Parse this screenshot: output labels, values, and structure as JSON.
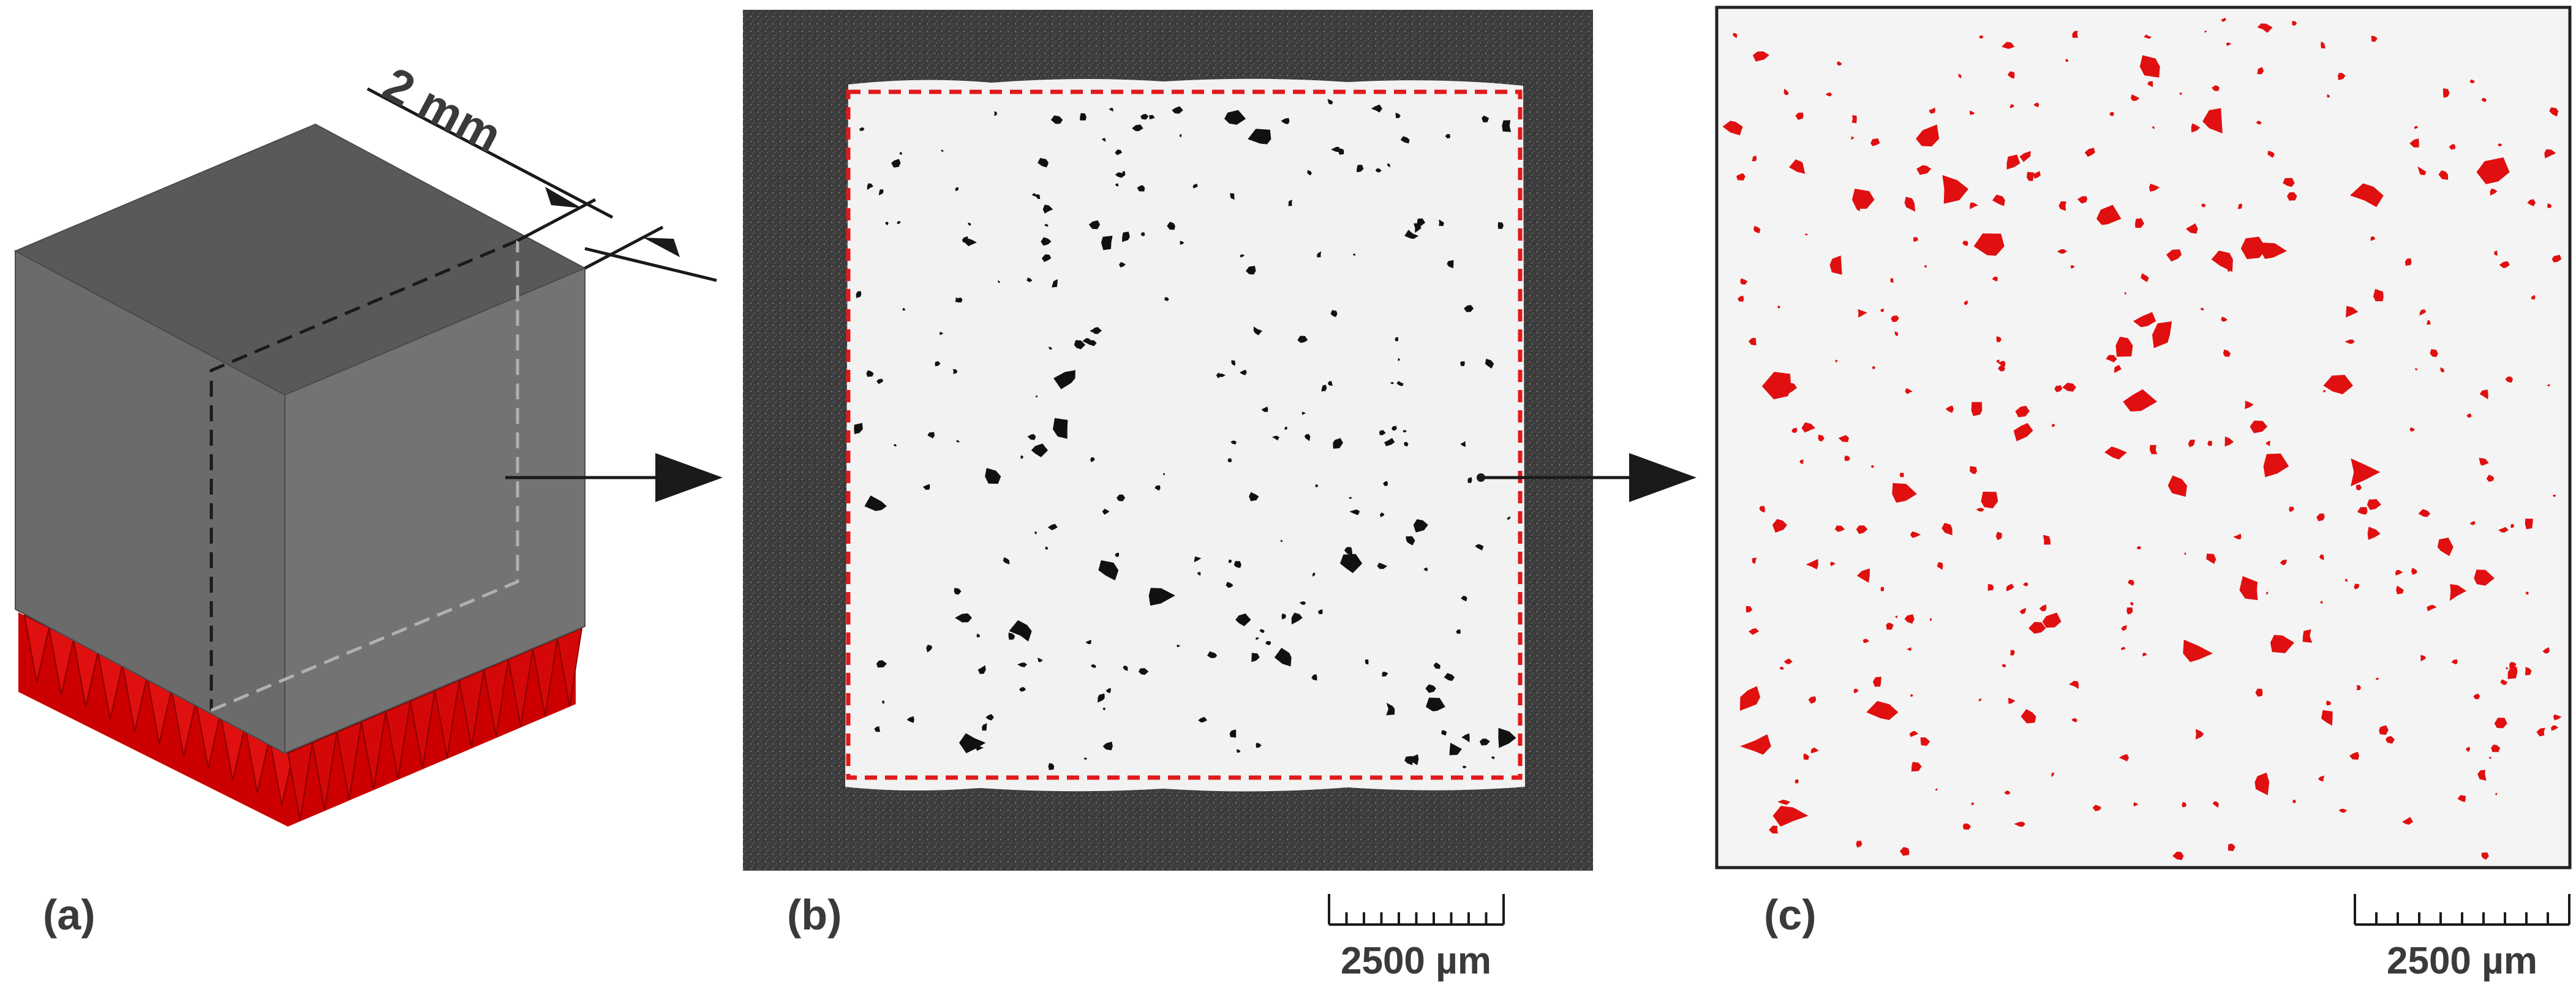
{
  "panels": {
    "a": {
      "label": "(a)",
      "dimension_text": "2 mm",
      "colors": {
        "cube_top": "#595959",
        "cube_left": "#6b6b6b",
        "cube_front": "#737373",
        "support": "#cc0000"
      }
    },
    "b": {
      "label": "(b)",
      "scale_bar_text": "2500 µm",
      "colors": {
        "background": "#3c3c3c",
        "section": "#f2f2f2",
        "pores": "#111111",
        "roi_outline": "#e0191b"
      }
    },
    "c": {
      "label": "(c)",
      "scale_bar_text": "2500 µm",
      "colors": {
        "background": "#f4f4f4",
        "pores": "#e01010",
        "frame": "#222222"
      }
    }
  }
}
